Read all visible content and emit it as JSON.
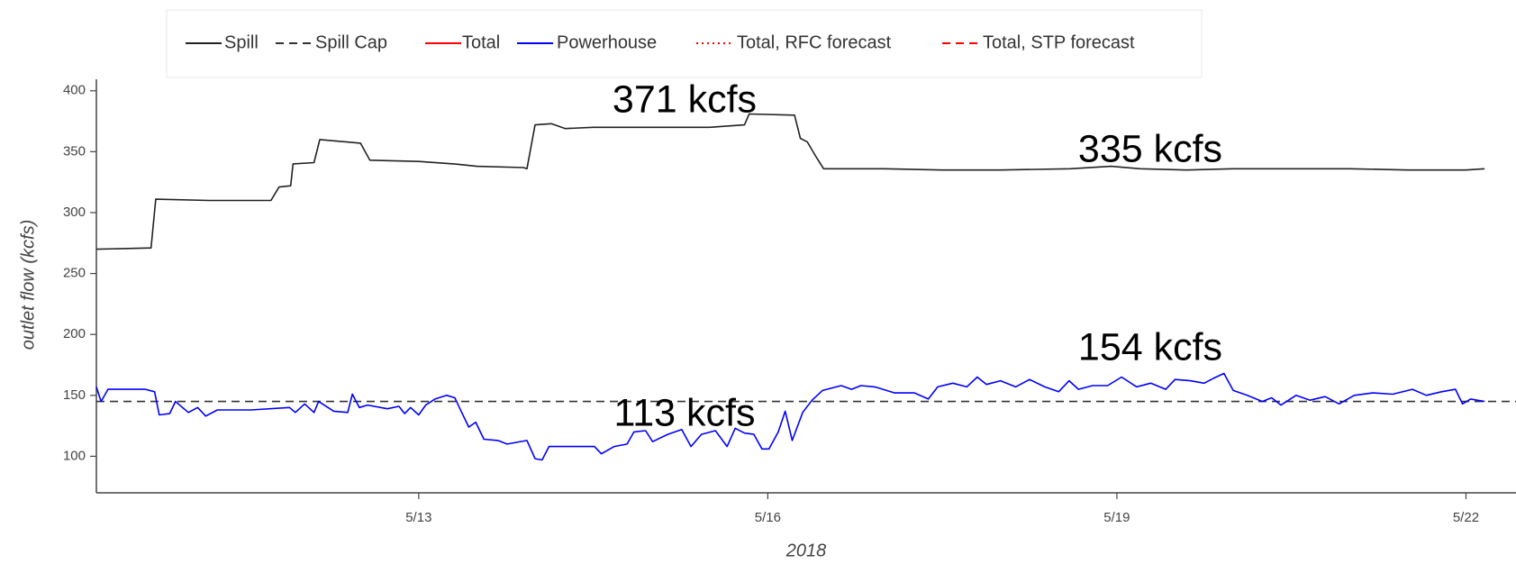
{
  "chart_data": {
    "type": "line",
    "xlabel": "2018",
    "ylabel": "outlet flow (kcfs)",
    "xlim": [
      10.23,
      22.43
    ],
    "ylim": [
      70,
      405
    ],
    "xticks": [
      {
        "value": 13,
        "label": "5/13"
      },
      {
        "value": 16,
        "label": "5/16"
      },
      {
        "value": 19,
        "label": "5/19"
      },
      {
        "value": 22,
        "label": "5/22"
      }
    ],
    "yticks": [
      100,
      150,
      200,
      250,
      300,
      350,
      400
    ],
    "grid": false,
    "legend": "top",
    "annotations": [
      "371 kcfs",
      "335 kcfs",
      "154 kcfs",
      "113 kcfs"
    ],
    "series": [
      {
        "name": "Spill",
        "color": "#222222",
        "dash": "solid",
        "x": [
          10.23,
          10.7,
          10.74,
          11.2,
          11.73,
          11.8,
          11.9,
          11.92,
          12.1,
          12.15,
          12.5,
          12.58,
          13.0,
          13.3,
          13.5,
          13.9,
          13.93,
          14.0,
          14.14,
          14.26,
          14.5,
          15.0,
          15.5,
          15.8,
          15.84,
          16.23,
          16.28,
          16.34,
          16.42,
          16.48,
          17.0,
          17.5,
          18.0,
          18.6,
          18.95,
          19.2,
          19.6,
          20.0,
          20.5,
          21.0,
          21.5,
          22.0,
          22.16
        ],
        "values": [
          270,
          271,
          311,
          310,
          310,
          321,
          322,
          340,
          341,
          360,
          357,
          343,
          342,
          340,
          338,
          337,
          336,
          372,
          373,
          369,
          370,
          370,
          370,
          372,
          381,
          380,
          361,
          358,
          345,
          336,
          336,
          335,
          335,
          336,
          338,
          336,
          335,
          336,
          336,
          336,
          335,
          335,
          336
        ]
      },
      {
        "name": "Spill Cap",
        "color": "#333333",
        "dash": "dashed",
        "x": [
          10.23,
          22.43
        ],
        "values": [
          145,
          145
        ]
      },
      {
        "name": "Total",
        "color": "#ff0000",
        "dash": "solid",
        "x": [],
        "values": []
      },
      {
        "name": "Powerhouse",
        "color": "#0000ff",
        "dash": "solid",
        "x": [
          10.23,
          10.27,
          10.33,
          10.65,
          10.73,
          10.77,
          10.86,
          10.91,
          11.02,
          11.1,
          11.17,
          11.27,
          11.56,
          11.89,
          11.94,
          12.02,
          12.1,
          12.14,
          12.27,
          12.39,
          12.43,
          12.49,
          12.56,
          12.73,
          12.83,
          12.88,
          12.93,
          13.0,
          13.06,
          13.14,
          13.24,
          13.31,
          13.37,
          13.43,
          13.49,
          13.56,
          13.68,
          13.76,
          13.93,
          14.0,
          14.06,
          14.12,
          14.26,
          14.39,
          14.51,
          14.57,
          14.68,
          14.79,
          14.85,
          14.95,
          15.01,
          15.14,
          15.26,
          15.34,
          15.43,
          15.55,
          15.65,
          15.72,
          15.8,
          15.88,
          15.95,
          16.01,
          16.09,
          16.15,
          16.21,
          16.3,
          16.38,
          16.47,
          16.63,
          16.72,
          16.8,
          16.92,
          17.09,
          17.26,
          17.38,
          17.46,
          17.59,
          17.71,
          17.8,
          17.88,
          18.0,
          18.13,
          18.25,
          18.38,
          18.5,
          18.59,
          18.67,
          18.79,
          18.92,
          19.04,
          19.17,
          19.29,
          19.42,
          19.5,
          19.63,
          19.75,
          19.83,
          19.92,
          20.0,
          20.12,
          20.25,
          20.33,
          20.41,
          20.54,
          20.66,
          20.79,
          20.91,
          21.04,
          21.2,
          21.37,
          21.54,
          21.66,
          21.79,
          21.91,
          21.97,
          22.04,
          22.16
        ],
        "values": [
          157,
          145,
          155,
          155,
          153,
          134,
          135,
          145,
          136,
          140,
          133,
          138,
          138,
          140,
          136,
          143,
          136,
          145,
          137,
          136,
          151,
          140,
          142,
          139,
          141,
          135,
          140,
          134,
          142,
          147,
          150,
          148,
          136,
          124,
          128,
          114,
          113,
          110,
          113,
          98,
          97,
          108,
          108,
          108,
          108,
          102,
          108,
          110,
          120,
          121,
          112,
          118,
          122,
          108,
          118,
          121,
          108,
          123,
          119,
          118,
          106,
          106,
          120,
          137,
          113,
          136,
          146,
          154,
          158,
          155,
          158,
          157,
          152,
          152,
          147,
          157,
          160,
          157,
          165,
          159,
          162,
          157,
          163,
          157,
          153,
          162,
          155,
          158,
          158,
          165,
          157,
          160,
          155,
          163,
          162,
          160,
          164,
          168,
          154,
          150,
          145,
          148,
          142,
          150,
          146,
          149,
          143,
          150,
          152,
          151,
          155,
          150,
          153,
          155,
          143,
          147,
          145
        ]
      },
      {
        "name": "Total, RFC forecast",
        "color": "#ff0000",
        "dash": "dotted",
        "x": [],
        "values": []
      },
      {
        "name": "Total, STP forecast",
        "color": "#ff0000",
        "dash": "dashed",
        "x": [],
        "values": []
      }
    ]
  }
}
